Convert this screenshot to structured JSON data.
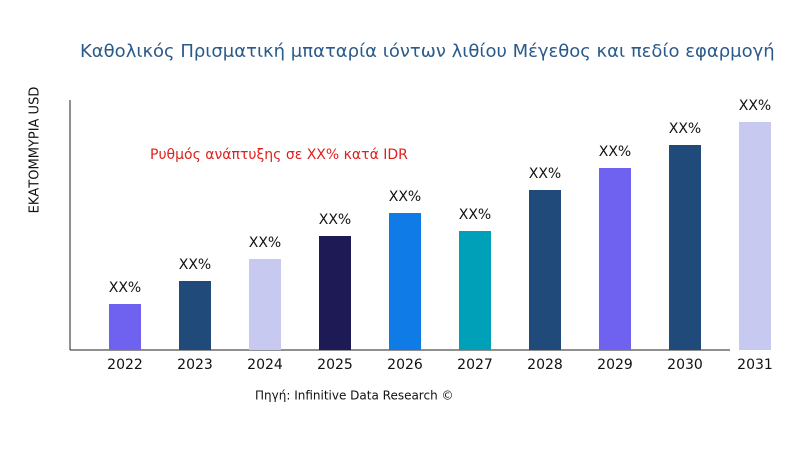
{
  "chart_data": {
    "type": "bar",
    "title": "Καθολικός Πρισματική μπαταρία ιόντων λιθίου Μέγεθος και πεδίο εφαρμογή",
    "y_label": "ΕΚΑΤΟΜΜΥΡΙΑ USD",
    "annotation": "Ρυθμός ανάπτυξης σε XX% κατά IDR",
    "source": "Πηγή: Infinitive Data Research ©",
    "categories": [
      "2022",
      "2023",
      "2024",
      "2025",
      "2026",
      "2027",
      "2028",
      "2029",
      "2030",
      "2031"
    ],
    "values": [
      46,
      69,
      91,
      114,
      137,
      119,
      160,
      182,
      205,
      228
    ],
    "value_labels": [
      "XX%",
      "XX%",
      "XX%",
      "XX%",
      "XX%",
      "XX%",
      "XX%",
      "XX%",
      "XX%",
      "XX%"
    ],
    "colors": [
      "#6f62f0",
      "#1f4a7a",
      "#c8c9f0",
      "#1e1a56",
      "#0f7be6",
      "#00a0b8",
      "#1f4a7a",
      "#6f62f0",
      "#1f4a7a",
      "#c8c9f0"
    ],
    "ylim": [
      0,
      250
    ]
  }
}
